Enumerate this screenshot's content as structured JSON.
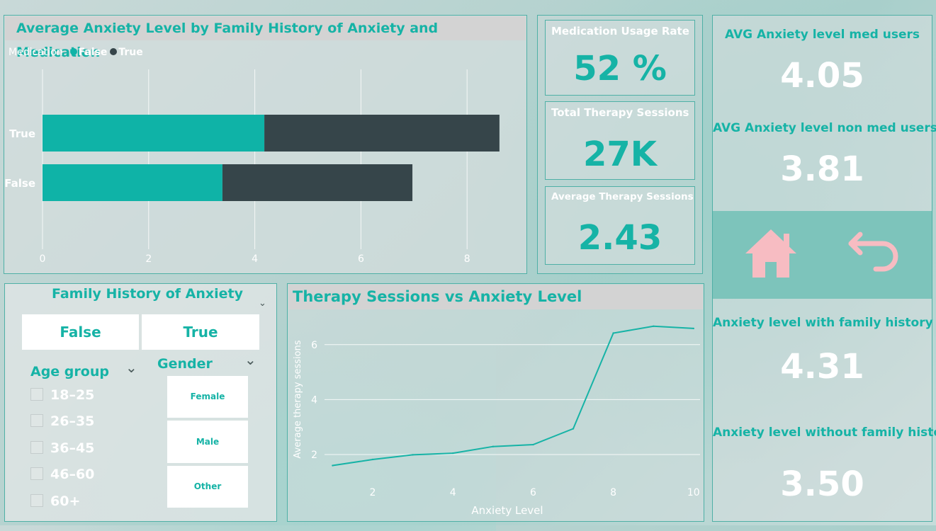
{
  "colors": {
    "accent": "#16b3a6",
    "dark": "#36454a",
    "nav": "#7dc4bb",
    "icon": "#f7bcc2"
  },
  "bar_chart": {
    "title": "Average Anxiety Level by Family History of Anxiety and Medication",
    "legend_title": "Medication",
    "legend": [
      {
        "label": "False",
        "color": "#0fb3a7"
      },
      {
        "label": "True",
        "color": "#36454a"
      }
    ]
  },
  "kpis": [
    {
      "title": "Medication Usage Rate",
      "value": "52 %"
    },
    {
      "title": "Total Therapy Sessions",
      "value": "27K"
    },
    {
      "title": "Average Therapy Sessions",
      "value": "2.43"
    }
  ],
  "right": {
    "med_users_title": "AVG Anxiety level med users",
    "med_users_value": "4.05",
    "non_med_title": "AVG Anxiety level non med users",
    "non_med_value": "3.81",
    "fam_title": "Anxiety level with family history",
    "fam_value": "4.31",
    "nofam_title": "Anxiety level without family history",
    "nofam_value": "3.50",
    "home_icon": "home-icon",
    "back_icon": "back-arrow-icon"
  },
  "filters": {
    "family_title": "Family History of Anxiety",
    "family_options": [
      "False",
      "True"
    ],
    "age_title": "Age group",
    "age_options": [
      "18–25",
      "26–35",
      "36–45",
      "46–60",
      "60+"
    ],
    "gender_title": "Gender",
    "gender_options": [
      "Female",
      "Male",
      "Other"
    ]
  },
  "line_chart": {
    "title": "Therapy Sessions vs Anxiety Level"
  },
  "chart_data": [
    {
      "type": "bar",
      "orientation": "horizontal",
      "stacked": true,
      "title": "Average Anxiety Level by Family History of Anxiety and Medication",
      "categories": [
        "True",
        "False"
      ],
      "series": [
        {
          "name": "False",
          "values": [
            4.18,
            3.39
          ]
        },
        {
          "name": "True",
          "values": [
            4.43,
            3.58
          ]
        }
      ],
      "xlim": [
        0,
        9
      ],
      "xticks": [
        0,
        2,
        4,
        6,
        8
      ],
      "legend_title": "Medication",
      "legend_position": "top-left",
      "grid": true
    },
    {
      "type": "line",
      "title": "Therapy Sessions vs Anxiety Level",
      "xlabel": "Anxiety Level",
      "ylabel": "Average therapy sessions",
      "x": [
        1,
        2,
        3,
        4,
        5,
        6,
        7,
        8,
        9,
        10
      ],
      "y": [
        1.6,
        1.82,
        1.99,
        2.05,
        2.29,
        2.36,
        2.94,
        6.42,
        6.67,
        6.59
      ],
      "xticks": [
        2,
        4,
        6,
        8,
        10
      ],
      "yticks": [
        2,
        4,
        6
      ],
      "xlim": [
        0.8,
        10.5
      ],
      "ylim": [
        1.0,
        7.2
      ],
      "grid": true
    }
  ]
}
